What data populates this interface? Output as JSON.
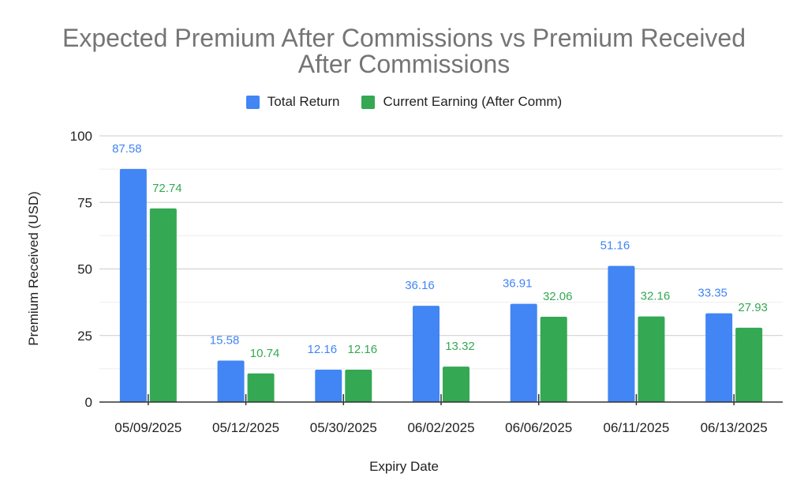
{
  "chart_data": {
    "type": "bar",
    "title_line1": "Expected Premium After Commissions vs Premium Received",
    "title_line2": "After Commissions",
    "xlabel": "Expiry Date",
    "ylabel": "Premium Received (USD)",
    "ylim": [
      0,
      100
    ],
    "yticks": [
      0,
      25,
      50,
      75,
      100
    ],
    "grid": true,
    "legend_position": "top",
    "categories": [
      "05/09/2025",
      "05/12/2025",
      "05/30/2025",
      "06/02/2025",
      "06/06/2025",
      "06/11/2025",
      "06/13/2025"
    ],
    "series": [
      {
        "name": "Total Return",
        "color": "#4285f4",
        "values": [
          87.58,
          15.58,
          12.16,
          36.16,
          36.91,
          51.16,
          33.35
        ]
      },
      {
        "name": "Current Earning (After Comm)",
        "color": "#34a853",
        "values": [
          72.74,
          10.74,
          12.16,
          13.32,
          32.06,
          32.16,
          27.93
        ]
      }
    ]
  }
}
